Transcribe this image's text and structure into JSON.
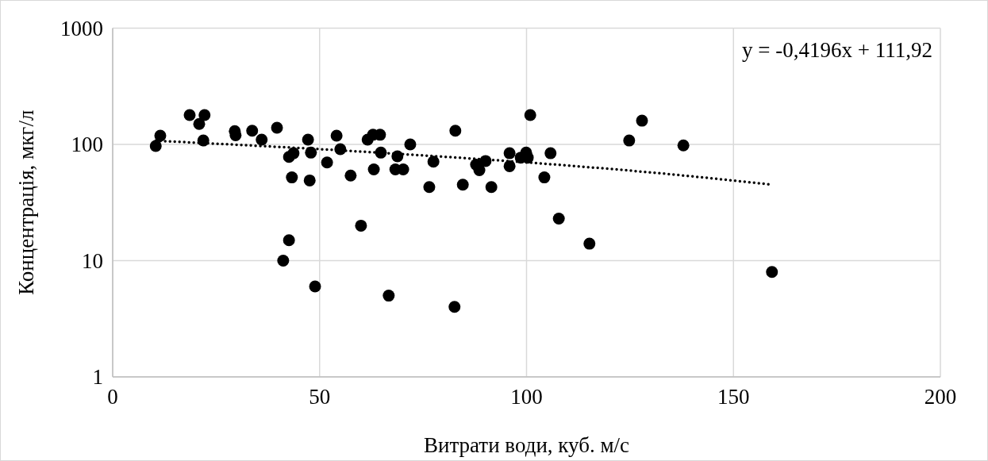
{
  "chart_data": {
    "type": "scatter",
    "xlabel": "Витрати води, куб. м/с",
    "ylabel": "Концентрація, мкг/л",
    "annotations": [
      "y = -0,4196x + 111,92"
    ],
    "log": "y",
    "grid": true,
    "marker": "circle",
    "xlim": [
      0,
      200
    ],
    "xticks": [
      0,
      50,
      100,
      150,
      200
    ],
    "ylim": [
      1,
      1000
    ],
    "yticks": [
      1,
      10,
      100,
      1000
    ],
    "series": [
      {
        "color": "#000000",
        "x": [
          10.4,
          11.5,
          18.6,
          20.9,
          22.2,
          21.9,
          29.5,
          29.7,
          33.7,
          36,
          39.7,
          42.6,
          43.7,
          43.3,
          42.6,
          41.2,
          47.2,
          47.9,
          47.6,
          48.9,
          51.8,
          54.1,
          55,
          57.5,
          60,
          61.6,
          62.9,
          64.6,
          64.8,
          63.1,
          68.8,
          68.3,
          70.2,
          71.9,
          66.7,
          77.5,
          76.5,
          82.8,
          82.6,
          84.6,
          87.8,
          90.1,
          88.6,
          91.5,
          95.9,
          95.9,
          98.6,
          99.9,
          100.3,
          100.9,
          105.8,
          104.3,
          107.8,
          115.2,
          124.8,
          127.9,
          137.9,
          159.3
        ],
        "values": [
          97,
          119,
          179,
          150,
          179,
          108,
          130,
          120,
          131,
          110,
          139,
          78,
          84,
          52,
          15,
          10,
          110,
          85,
          49,
          6,
          70,
          119,
          91,
          54,
          20,
          110,
          121,
          121,
          85,
          61,
          79,
          61,
          61,
          100,
          5,
          71,
          43,
          131,
          4,
          45,
          67,
          72,
          60,
          43,
          84,
          65,
          77,
          85,
          77,
          179,
          84,
          52,
          23,
          14,
          108,
          160,
          98,
          8
        ]
      },
      {
        "type": "line",
        "color": "#000000",
        "line_style": "dotted",
        "marker": "none",
        "x": [
          10.4,
          30,
          50,
          70,
          90,
          110,
          130,
          159.3
        ],
        "values": [
          107.6,
          99.3,
          91,
          82.5,
          74.2,
          65.8,
          57.4,
          45.1
        ]
      }
    ]
  }
}
